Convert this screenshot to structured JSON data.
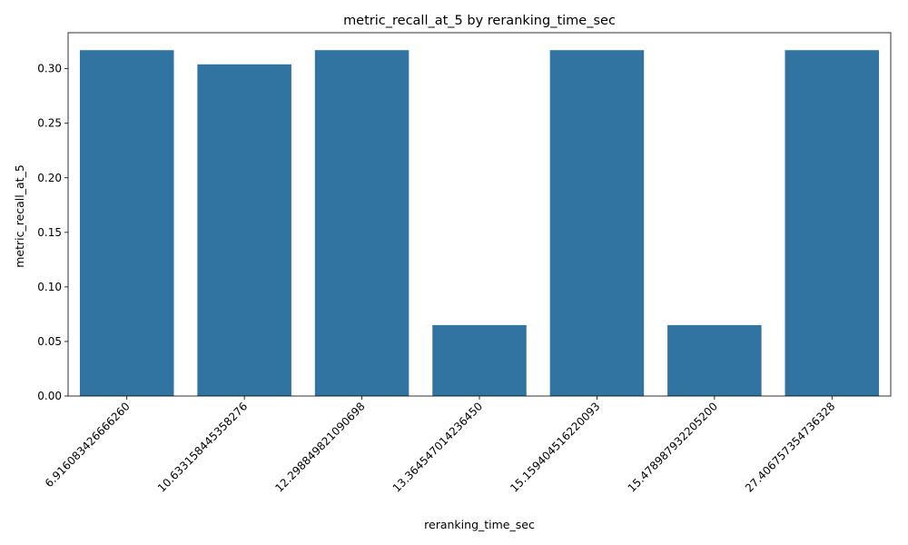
{
  "chart_data": {
    "type": "bar",
    "title": "metric_recall_at_5 by reranking_time_sec",
    "xlabel": "reranking_time_sec",
    "ylabel": "metric_recall_at_5",
    "categories": [
      "6.916083426666260",
      "10.633158445358276",
      "12.298849821090698",
      "13.364547014236450",
      "15.159404516220093",
      "15.478987932205200",
      "27.406757354736328"
    ],
    "values": [
      0.317,
      0.304,
      0.317,
      0.065,
      0.317,
      0.065,
      0.317
    ],
    "ylim": [
      0,
      0.333
    ],
    "yticks": [
      0.0,
      0.05,
      0.1,
      0.15,
      0.2,
      0.25,
      0.3
    ],
    "ytick_labels": [
      "0.00",
      "0.05",
      "0.10",
      "0.15",
      "0.20",
      "0.25",
      "0.30"
    ],
    "grid": false,
    "legend": "none",
    "bar_color": "#3274a1"
  }
}
